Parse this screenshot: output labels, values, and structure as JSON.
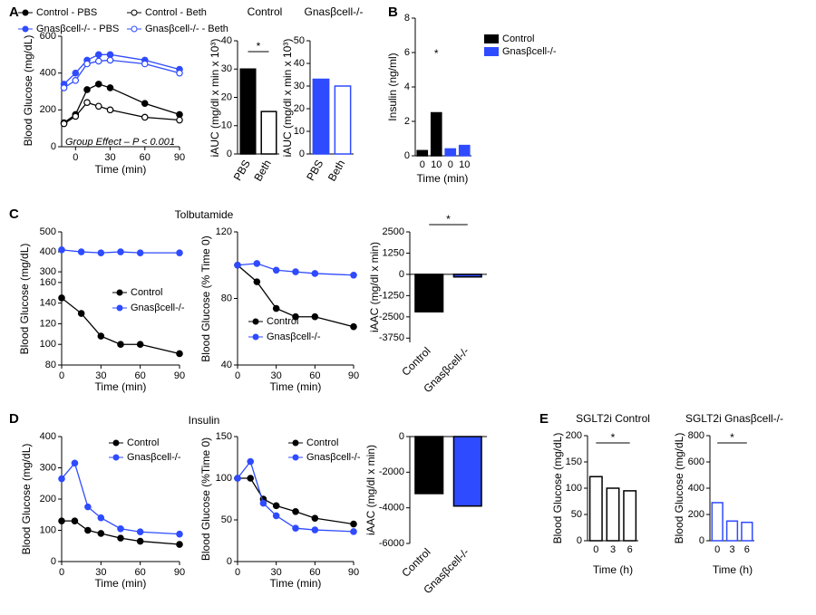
{
  "chart_data": [
    {
      "type": "line",
      "panel": "A",
      "ylabel": "Blood Glucose (mg/dL)",
      "xlabel": "Time (min)",
      "x": [
        -10,
        0,
        10,
        20,
        30,
        60,
        90
      ],
      "xlim": [
        -12,
        90
      ],
      "xticks": [
        0,
        30,
        60,
        90
      ],
      "ylim": [
        0,
        600
      ],
      "yticks": [
        0,
        200,
        400,
        600
      ],
      "annotations": [
        "Group Effect – P < 0.001"
      ],
      "series": [
        {
          "name": "Control - PBS",
          "color": "#000000",
          "marker": "filled",
          "values": [
            130,
            175,
            310,
            340,
            320,
            235,
            175
          ]
        },
        {
          "name": "Control - Beth",
          "color": "#000000",
          "marker": "open",
          "values": [
            125,
            165,
            240,
            220,
            200,
            160,
            145
          ]
        },
        {
          "name": "Gnasβcell-/- - PBS",
          "color": "#2f4bff",
          "marker": "filled",
          "values": [
            340,
            400,
            470,
            500,
            500,
            470,
            420
          ]
        },
        {
          "name": "Gnasβcell-/- - Beth",
          "color": "#2f4bff",
          "marker": "open",
          "values": [
            320,
            360,
            450,
            465,
            470,
            450,
            400
          ]
        }
      ]
    },
    {
      "type": "bar",
      "title": "Control",
      "ylabel": "iAUC (mg/dl x min x 10³)",
      "categories": [
        "PBS",
        "Beth"
      ],
      "values": [
        30,
        15
      ],
      "colors": [
        "#000000",
        "#ffffff"
      ],
      "edgecolor": "#000000",
      "ylim": [
        0,
        40
      ],
      "yticks": [
        0,
        10,
        20,
        30,
        40
      ],
      "annotations": [
        "*"
      ]
    },
    {
      "type": "bar",
      "title": "Gnasβcell-/-",
      "ylabel": "iAUC (mg/dl x min x 10³)",
      "categories": [
        "PBS",
        "Beth"
      ],
      "values": [
        33,
        30
      ],
      "colors": [
        "#2f4bff",
        "#ffffff"
      ],
      "edgecolor": "#2f4bff",
      "ylim": [
        0,
        50
      ],
      "yticks": [
        0,
        10,
        20,
        30,
        40,
        50
      ]
    },
    {
      "type": "bar",
      "panel": "B",
      "ylabel": "Insulin (ng/ml)",
      "xlabel": "Time (min)",
      "categories": [
        "0",
        "10"
      ],
      "ylim": [
        0,
        8
      ],
      "yticks": [
        0,
        2,
        4,
        6,
        8
      ],
      "annotations": [
        "*"
      ],
      "series": [
        {
          "name": "Control",
          "color": "#000000",
          "values": [
            0.3,
            2.5
          ]
        },
        {
          "name": "Gnasβcell-/-",
          "color": "#2f4bff",
          "values": [
            0.4,
            0.6
          ]
        }
      ]
    },
    {
      "type": "line",
      "panel": "C",
      "title": "Tolbutamide",
      "ylabel": "Blood Glucose (mg/dL)",
      "xlabel": "Time (min)",
      "x": [
        0,
        15,
        30,
        45,
        60,
        90
      ],
      "xlim": [
        0,
        90
      ],
      "xticks": [
        0,
        30,
        60,
        90
      ],
      "ylim": [
        80,
        500
      ],
      "yticks": [
        80,
        100,
        120,
        140,
        160,
        300,
        400,
        500
      ],
      "broken_axis": true,
      "series": [
        {
          "name": "Control",
          "color": "#000000",
          "marker": "filled",
          "values": [
            145,
            130,
            108,
            100,
            100,
            91
          ]
        },
        {
          "name": "Gnasβcell-/-",
          "color": "#2f4bff",
          "marker": "filled",
          "values": [
            410,
            400,
            395,
            400,
            395,
            395
          ]
        }
      ]
    },
    {
      "type": "line",
      "ylabel": "Blood Glucose (% Time 0)",
      "xlabel": "Time (min)",
      "x": [
        0,
        15,
        30,
        45,
        60,
        90
      ],
      "xlim": [
        0,
        90
      ],
      "xticks": [
        0,
        30,
        60,
        90
      ],
      "ylim": [
        40,
        120
      ],
      "yticks": [
        40,
        80,
        120
      ],
      "series": [
        {
          "name": "Control",
          "color": "#000000",
          "marker": "filled",
          "values": [
            100,
            90,
            74,
            69,
            69,
            63
          ]
        },
        {
          "name": "Gnasβcell-/-",
          "color": "#2f4bff",
          "marker": "filled",
          "values": [
            100,
            101,
            97,
            96,
            95,
            94
          ]
        }
      ]
    },
    {
      "type": "bar",
      "ylabel": "iAAC (mg/dl x min)",
      "categories": [
        "Control",
        "Gnasβcell-/-"
      ],
      "values": [
        -2200,
        -150
      ],
      "colors": [
        "#000000",
        "#2f4bff"
      ],
      "edgecolor": "#000000",
      "ylim": [
        -4000,
        2500
      ],
      "yticks": [
        2500,
        1250,
        0,
        -1250,
        -2500,
        -3750
      ],
      "annotations": [
        "*"
      ]
    },
    {
      "type": "line",
      "panel": "D",
      "title": "Insulin",
      "ylabel": "Blood Glucose (mg/dL)",
      "xlabel": "Time (min)",
      "x": [
        0,
        10,
        20,
        30,
        45,
        60,
        90
      ],
      "xlim": [
        0,
        90
      ],
      "xticks": [
        0,
        30,
        60,
        90
      ],
      "ylim": [
        0,
        400
      ],
      "yticks": [
        0,
        100,
        200,
        300,
        400
      ],
      "series": [
        {
          "name": "Control",
          "color": "#000000",
          "marker": "filled",
          "values": [
            130,
            130,
            100,
            90,
            75,
            65,
            55
          ]
        },
        {
          "name": "Gnasβcell-/-",
          "color": "#2f4bff",
          "marker": "filled",
          "values": [
            265,
            315,
            175,
            140,
            105,
            95,
            88
          ]
        }
      ]
    },
    {
      "type": "line",
      "ylabel": "Blood Glucose (%Time 0)",
      "xlabel": "Time (min)",
      "x": [
        0,
        10,
        20,
        30,
        45,
        60,
        90
      ],
      "xlim": [
        0,
        90
      ],
      "xticks": [
        0,
        30,
        60,
        90
      ],
      "ylim": [
        0,
        150
      ],
      "yticks": [
        0,
        50,
        100,
        150
      ],
      "series": [
        {
          "name": "Control",
          "color": "#000000",
          "marker": "filled",
          "values": [
            100,
            100,
            75,
            67,
            60,
            52,
            45
          ]
        },
        {
          "name": "Gnasβcell-/-",
          "color": "#2f4bff",
          "marker": "filled",
          "values": [
            100,
            120,
            70,
            55,
            40,
            38,
            36
          ]
        }
      ]
    },
    {
      "type": "bar",
      "ylabel": "iAAC (mg/dl x min)",
      "categories": [
        "Control",
        "Gnasβcell-/-"
      ],
      "values": [
        -3200,
        -3900
      ],
      "colors": [
        "#000000",
        "#2f4bff"
      ],
      "edgecolor": "#000000",
      "ylim": [
        -6000,
        0
      ],
      "yticks": [
        0,
        -2000,
        -4000,
        -6000
      ]
    },
    {
      "type": "bar",
      "panel": "E",
      "title": "SGLT2i Control",
      "ylabel": "Blood Glucose (mg/dL)",
      "xlabel": "Time (h)",
      "categories": [
        "0",
        "3",
        "6"
      ],
      "values": [
        122,
        100,
        95
      ],
      "colors": [
        "#ffffff",
        "#ffffff",
        "#ffffff"
      ],
      "edgecolor": "#000000",
      "ylim": [
        0,
        200
      ],
      "yticks": [
        0,
        50,
        100,
        150,
        200
      ],
      "annotations": [
        "*"
      ]
    },
    {
      "type": "bar",
      "title": "SGLT2i Gnasβcell-/-",
      "ylabel": "Blood Glucose (mg/dL)",
      "xlabel": "Time (h)",
      "categories": [
        "0",
        "3",
        "6"
      ],
      "values": [
        290,
        150,
        140
      ],
      "colors": [
        "#ffffff",
        "#ffffff",
        "#ffffff"
      ],
      "edgecolor": "#2f4bff",
      "ylim": [
        0,
        800
      ],
      "yticks": [
        0,
        200,
        400,
        600,
        800
      ],
      "annotations": [
        "*"
      ]
    }
  ]
}
